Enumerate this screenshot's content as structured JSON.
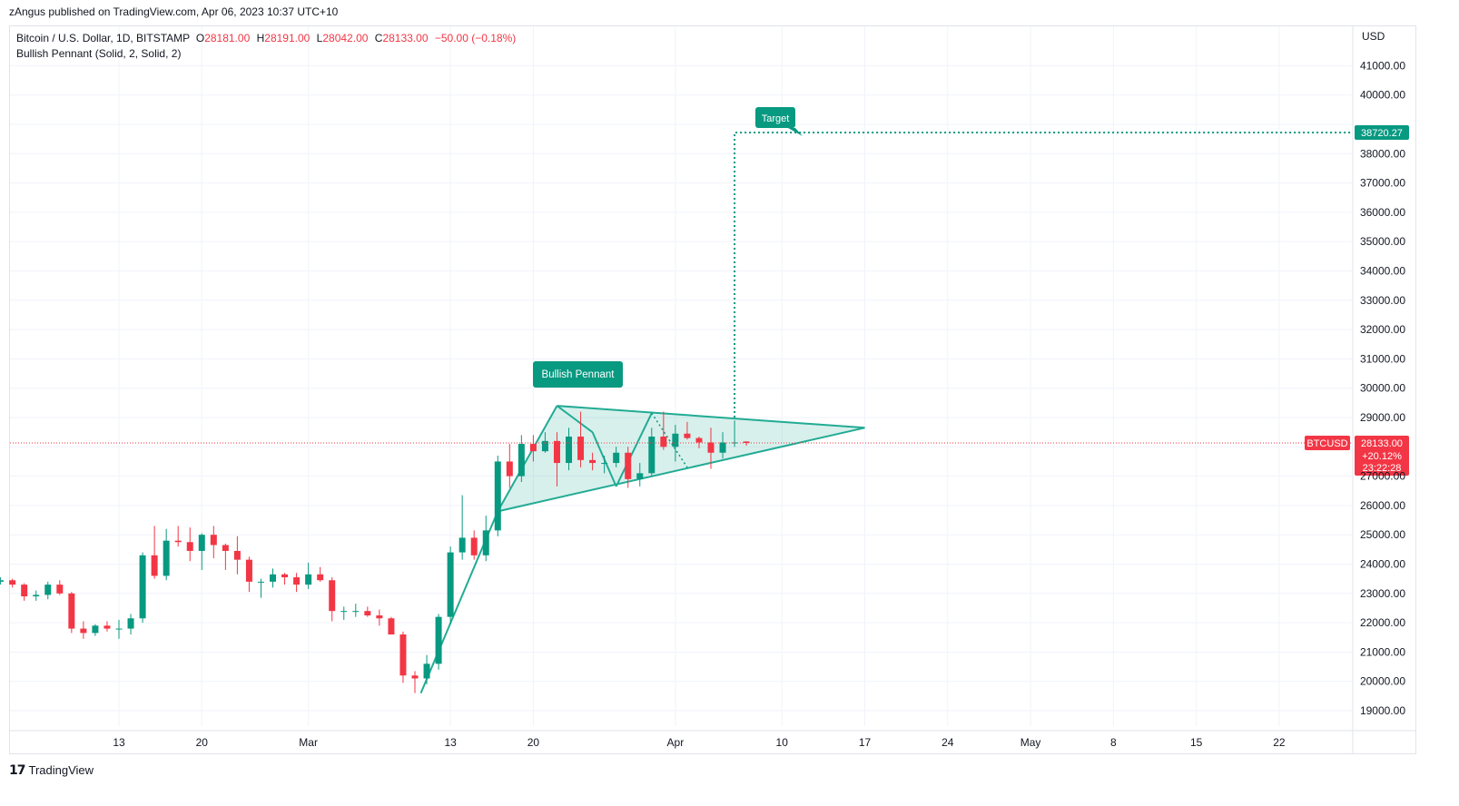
{
  "published_line": "zAngus published on TradingView.com, Apr 06, 2023 10:37 UTC+10",
  "header": {
    "symbol": "Bitcoin / U.S. Dollar, 1D, BITSTAMP",
    "o_label": "O",
    "o_value": "28181.00",
    "h_label": "H",
    "h_value": "28191.00",
    "l_label": "L",
    "l_value": "28042.00",
    "c_label": "C",
    "c_value": "28133.00",
    "change": "−50.00 (−0.18%)",
    "indicator": "Bullish Pennant (Solid, 2, Solid, 2)"
  },
  "currency": "USD",
  "footer": {
    "brand": "TradingView",
    "logo": "tv-logo-icon"
  },
  "colors": {
    "up": "#089981",
    "down": "#f23645",
    "pattern": "#22ab94",
    "pattern_fill": "rgba(34,171,148,0.18)",
    "target": "#089981",
    "price_line": "#f23645"
  },
  "chart_data": {
    "type": "candlestick",
    "ylim": [
      18500,
      42000
    ],
    "ticks": [
      19000,
      20000,
      21000,
      22000,
      23000,
      24000,
      25000,
      26000,
      27000,
      28000,
      29000,
      30000,
      31000,
      32000,
      33000,
      34000,
      35000,
      36000,
      37000,
      38000,
      39000,
      40000,
      41000
    ],
    "tick_labels": [
      "19000.00",
      "20000.00",
      "21000.00",
      "22000.00",
      "23000.00",
      "24000.00",
      "25000.00",
      "26000.00",
      "27000.00",
      "",
      "29000.00",
      "30000.00",
      "31000.00",
      "32000.00",
      "33000.00",
      "34000.00",
      "35000.00",
      "36000.00",
      "37000.00",
      "38000.00",
      "",
      "40000.00",
      "41000.00"
    ],
    "x_labels": [
      {
        "label": "13",
        "day": 13
      },
      {
        "label": "20",
        "day": 20
      },
      {
        "label": "Mar",
        "day": 29
      },
      {
        "label": "13",
        "day": 41
      },
      {
        "label": "20",
        "day": 48
      },
      {
        "label": "Apr",
        "day": 60
      },
      {
        "label": "10",
        "day": 69
      },
      {
        "label": "17",
        "day": 76
      },
      {
        "label": "24",
        "day": 83
      },
      {
        "label": "May",
        "day": 90
      },
      {
        "label": "8",
        "day": 97
      },
      {
        "label": "15",
        "day": 104
      },
      {
        "label": "22",
        "day": 111
      }
    ],
    "candles": [
      [
        3,
        23400,
        23550,
        23300,
        23450
      ],
      [
        4,
        23450,
        23500,
        23200,
        23300
      ],
      [
        5,
        23300,
        23350,
        22750,
        22900
      ],
      [
        6,
        22900,
        23100,
        22750,
        22950
      ],
      [
        7,
        22950,
        23400,
        22800,
        23300
      ],
      [
        8,
        23300,
        23450,
        22950,
        23000
      ],
      [
        9,
        23000,
        23050,
        21650,
        21800
      ],
      [
        10,
        21800,
        22050,
        21450,
        21650
      ],
      [
        11,
        21650,
        21950,
        21550,
        21900
      ],
      [
        12,
        21900,
        22050,
        21700,
        21800
      ],
      [
        13,
        21800,
        22100,
        21450,
        21800
      ],
      [
        14,
        21800,
        22300,
        21600,
        22150
      ],
      [
        15,
        22150,
        24400,
        22000,
        24300
      ],
      [
        16,
        24300,
        25300,
        23500,
        23600
      ],
      [
        17,
        23600,
        25200,
        23450,
        24800
      ],
      [
        18,
        24800,
        25300,
        24600,
        24750
      ],
      [
        19,
        24750,
        25250,
        24100,
        24450
      ],
      [
        20,
        24450,
        25050,
        23800,
        25000
      ],
      [
        21,
        25000,
        25300,
        24200,
        24650
      ],
      [
        22,
        24650,
        24700,
        23800,
        24450
      ],
      [
        23,
        24450,
        24950,
        23650,
        24150
      ],
      [
        24,
        24150,
        24250,
        23050,
        23400
      ],
      [
        25,
        23400,
        23500,
        22850,
        23400
      ],
      [
        26,
        23400,
        23850,
        23200,
        23650
      ],
      [
        27,
        23650,
        23700,
        23300,
        23550
      ],
      [
        28,
        23550,
        23700,
        23050,
        23300
      ],
      [
        29,
        23300,
        24050,
        23150,
        23650
      ],
      [
        30,
        23650,
        23900,
        23400,
        23450
      ],
      [
        31,
        23450,
        23550,
        22050,
        22400
      ],
      [
        32,
        22400,
        22550,
        22100,
        22400
      ],
      [
        33,
        22400,
        22650,
        22200,
        22400
      ],
      [
        34,
        22400,
        22550,
        22200,
        22250
      ],
      [
        35,
        22250,
        22450,
        21900,
        22150
      ],
      [
        36,
        22150,
        22200,
        21700,
        21600
      ],
      [
        37,
        21600,
        21700,
        19950,
        20200
      ],
      [
        38,
        20200,
        20350,
        19600,
        20100
      ],
      [
        39,
        20100,
        20900,
        19900,
        20600
      ],
      [
        40,
        20600,
        22300,
        20400,
        22200
      ],
      [
        41,
        22200,
        24600,
        21950,
        24400
      ],
      [
        42,
        24400,
        26350,
        24150,
        24900
      ],
      [
        43,
        24900,
        25150,
        24150,
        24300
      ],
      [
        44,
        24300,
        25650,
        24100,
        25150
      ],
      [
        45,
        25150,
        27700,
        24950,
        27500
      ],
      [
        46,
        27500,
        28100,
        26600,
        27000
      ],
      [
        47,
        27000,
        28400,
        26800,
        28100
      ],
      [
        48,
        28100,
        28400,
        27500,
        27850
      ],
      [
        49,
        27850,
        28500,
        27800,
        28200
      ],
      [
        50,
        28200,
        28500,
        26650,
        27450
      ],
      [
        51,
        27450,
        28650,
        27200,
        28350
      ],
      [
        52,
        28350,
        29200,
        27300,
        27550
      ],
      [
        53,
        27550,
        27800,
        27200,
        27450
      ],
      [
        54,
        27450,
        27700,
        27100,
        27450
      ],
      [
        55,
        27450,
        28000,
        27300,
        27800
      ],
      [
        56,
        27800,
        28000,
        26600,
        26900
      ],
      [
        57,
        26900,
        27450,
        26650,
        27100
      ],
      [
        58,
        27100,
        28650,
        27000,
        28350
      ],
      [
        59,
        28350,
        29200,
        27900,
        28000
      ],
      [
        60,
        28000,
        28750,
        27500,
        28450
      ],
      [
        61,
        28450,
        28850,
        28250,
        28300
      ],
      [
        62,
        28300,
        28350,
        27950,
        28150
      ],
      [
        63,
        28150,
        28650,
        27250,
        27800
      ],
      [
        64,
        27800,
        28500,
        27600,
        28150
      ],
      [
        65,
        28150,
        28900,
        28000,
        28150
      ],
      [
        66,
        28181,
        28191,
        28042,
        28133
      ]
    ],
    "current_price": {
      "label": "BTCUSD",
      "value": "28133.00",
      "change": "+20.12%",
      "countdown": "23:22:28"
    },
    "target": {
      "label": "Target",
      "value": 38720.27,
      "value_text": "38720.27",
      "start_day": 65
    },
    "pattern_label": "Bullish Pennant",
    "pattern": {
      "pole": [
        [
          38.5,
          19600
        ],
        [
          45,
          25800
        ]
      ],
      "upper": [
        [
          50,
          29400
        ],
        [
          76,
          28650
        ]
      ],
      "lower": [
        [
          45,
          25800
        ],
        [
          76,
          28650
        ]
      ],
      "zigzag": [
        [
          50,
          29400
        ],
        [
          53,
          28500
        ],
        [
          55,
          26650
        ],
        [
          58,
          29150
        ]
      ],
      "dotted": [
        [
          58,
          29150
        ],
        [
          61,
          27300
        ]
      ]
    }
  }
}
